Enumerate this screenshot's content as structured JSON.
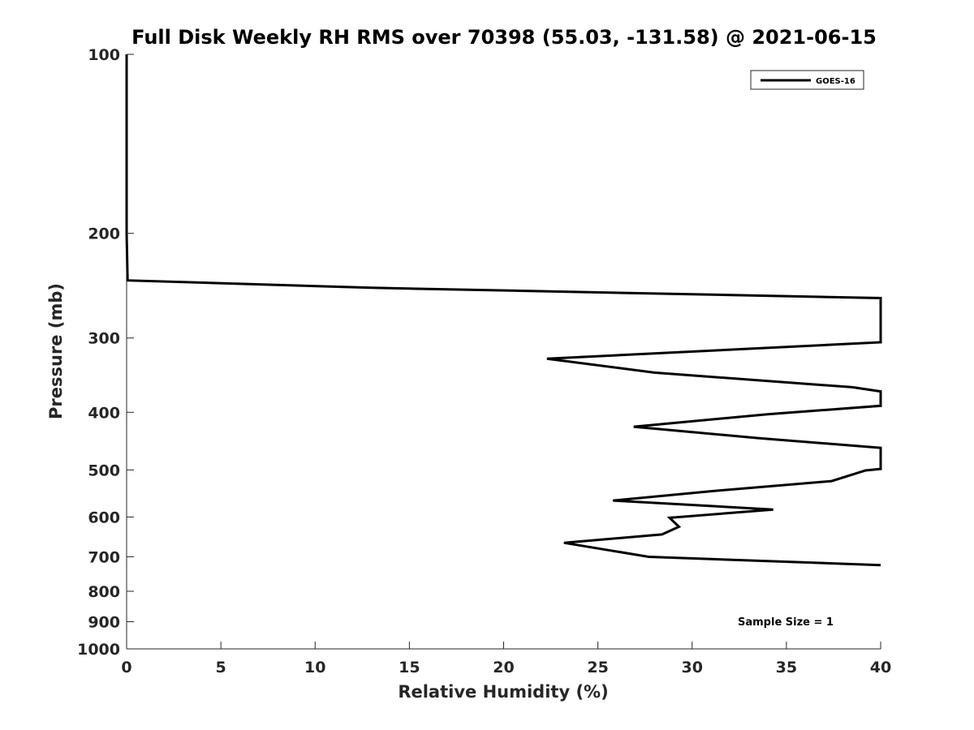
{
  "chart_data": {
    "type": "line",
    "title": "Full Disk Weekly RH RMS over 70398 (55.03, -131.58) @ 2021-06-15",
    "xlabel": "Relative Humidity (%)",
    "ylabel": "Pressure (mb)",
    "xlim": [
      0,
      40
    ],
    "ylim": [
      100,
      1000
    ],
    "yscale": "log",
    "y_reversed": true,
    "xticks": [
      0,
      5,
      10,
      15,
      20,
      25,
      30,
      35,
      40
    ],
    "yticks": [
      100,
      200,
      300,
      400,
      500,
      600,
      700,
      800,
      900,
      1000
    ],
    "grid": false,
    "legend_position": "top-right",
    "series": [
      {
        "name": "GOES-16",
        "color": "#000000",
        "points": [
          [
            0.0,
            100
          ],
          [
            0.0,
            150
          ],
          [
            0.0,
            200
          ],
          [
            0.05,
            240
          ],
          [
            13.0,
            247
          ],
          [
            40.0,
            257
          ],
          [
            40.0,
            305
          ],
          [
            22.3,
            325
          ],
          [
            28.0,
            343
          ],
          [
            38.5,
            363
          ],
          [
            40.0,
            369
          ],
          [
            40.0,
            390
          ],
          [
            34.0,
            403
          ],
          [
            26.9,
            423
          ],
          [
            33.5,
            442
          ],
          [
            40.0,
            459
          ],
          [
            40.0,
            498
          ],
          [
            39.2,
            501
          ],
          [
            37.4,
            522
          ],
          [
            31.0,
            543
          ],
          [
            25.8,
            563
          ],
          [
            34.3,
            583
          ],
          [
            28.8,
            602
          ],
          [
            29.3,
            623
          ],
          [
            28.4,
            642
          ],
          [
            23.2,
            663
          ],
          [
            27.7,
            700
          ],
          [
            40.0,
            723
          ]
        ]
      }
    ],
    "annotation": "Sample Size = 1"
  }
}
